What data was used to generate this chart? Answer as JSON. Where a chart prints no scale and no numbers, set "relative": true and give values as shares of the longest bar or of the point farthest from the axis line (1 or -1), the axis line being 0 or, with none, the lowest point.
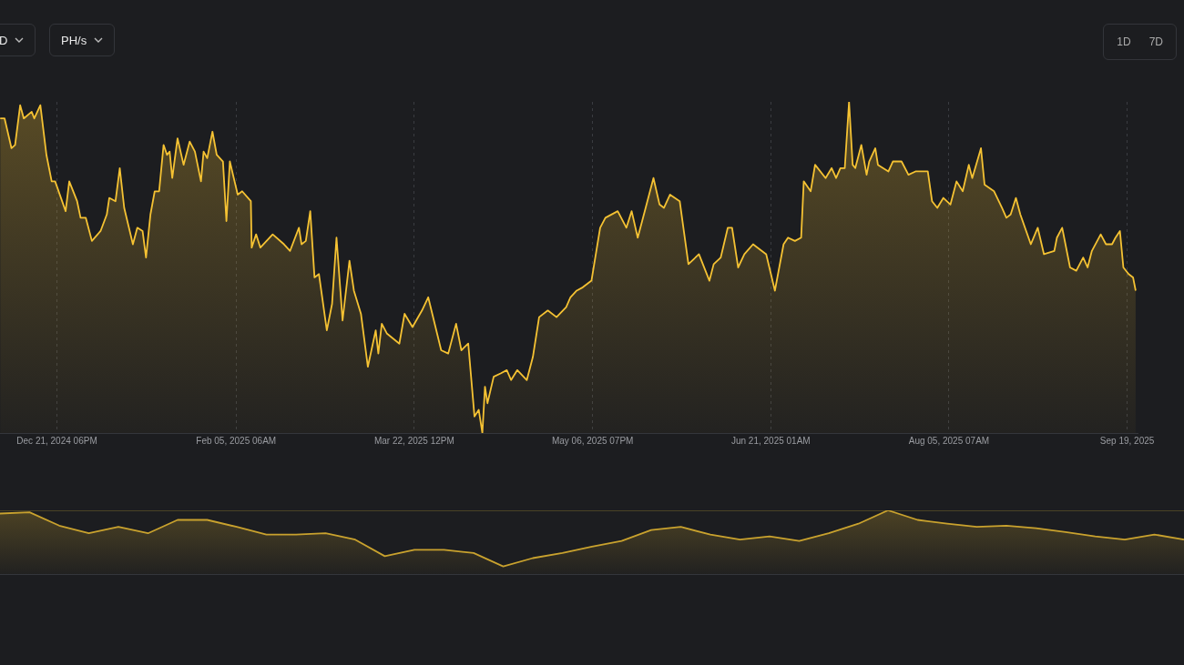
{
  "chart_data": [
    {
      "type": "area",
      "relative": true,
      "grid": "x",
      "legend": false,
      "tick_labels": "x",
      "color": "#f5c233",
      "annotations": [
        "D",
        "PH/s",
        "1D",
        "7D"
      ],
      "xlim": [
        "2024-12-07T07:00",
        "2025-09-22T10:00"
      ],
      "xticks": [
        {
          "value": "2024-12-21T18:00",
          "label": "Dec 21, 2024 06PM"
        },
        {
          "value": "2025-02-05T06:00",
          "label": "Feb 05, 2025 06AM"
        },
        {
          "value": "2025-03-22T12:00",
          "label": "Mar 22, 2025 12PM"
        },
        {
          "value": "2025-05-06T19:00",
          "label": "May 06, 2025 07PM"
        },
        {
          "value": "2025-06-21T01:00",
          "label": "Jun 21, 2025 01AM"
        },
        {
          "value": "2025-08-05T07:00",
          "label": "Aug 05, 2025 07AM"
        },
        {
          "value": "2025-09-19T13:00",
          "label": "Sep 19, 2025"
        }
      ],
      "x": [
        "2024-12-07T08:00",
        "2024-12-08T11:00",
        "2024-12-10T05:00",
        "2024-12-11T03:00",
        "2024-12-12T10:00",
        "2024-12-13T08:00",
        "2024-12-15T08:00",
        "2024-12-16T00:00",
        "2024-12-17T13:00",
        "2024-12-19T02:00",
        "2024-12-20T10:00",
        "2024-12-21T07:00",
        "2024-12-23T23:00",
        "2024-12-24T21:00",
        "2024-12-26T21:00",
        "2024-12-27T18:00",
        "2024-12-29T02:00",
        "2024-12-30T15:00",
        "2025-01-01T20:00",
        "2025-01-03T10:00",
        "2025-01-04T01:00",
        "2025-01-05T15:00",
        "2025-01-06T17:00",
        "2025-01-07T20:00",
        "2025-01-10T01:00",
        "2025-01-11T04:00",
        "2025-01-12T12:00",
        "2025-01-13T09:00",
        "2025-01-14T12:00",
        "2025-01-15T14:00",
        "2025-01-16T17:00",
        "2025-01-17T20:00",
        "2025-01-18T17:00",
        "2025-01-19T09:00",
        "2025-01-20T01:00",
        "2025-01-21T09:00",
        "2025-01-22T22:00",
        "2025-01-24T11:00",
        "2025-01-25T19:00",
        "2025-01-27T08:00",
        "2025-01-28T00:00",
        "2025-01-28T22:00",
        "2025-01-30T06:00",
        "2025-01-31T08:00",
        "2025-02-01T22:00",
        "2025-02-02T19:00",
        "2025-02-03T16:00",
        "2025-02-05T16:00",
        "2025-02-06T19:00",
        "2025-02-09T00:00",
        "2025-02-09T05:00",
        "2025-02-10T08:00",
        "2025-02-11T10:00",
        "2025-02-14T13:00",
        "2025-02-17T10:00",
        "2025-02-18T23:00",
        "2025-02-21T05:00",
        "2025-02-21T21:00",
        "2025-02-22T23:00",
        "2025-02-24T02:00",
        "2025-02-25T04:00",
        "2025-02-26T07:00",
        "2025-02-28T07:00",
        "2025-03-01T15:00",
        "2025-03-02T18:00",
        "2025-03-04T07:00",
        "2025-03-06T01:00",
        "2025-03-07T04:00",
        "2025-03-08T23:00",
        "2025-03-10T17:00",
        "2025-03-12T17:00",
        "2025-03-13T09:00",
        "2025-03-14T06:00",
        "2025-03-15T14:00",
        "2025-03-18T17:00",
        "2025-03-20T01:00",
        "2025-03-22T01:00",
        "2025-03-24T11:00",
        "2025-03-26T01:00",
        "2025-03-29T08:00",
        "2025-03-31T03:00",
        "2025-04-02T03:00",
        "2025-04-03T11:00",
        "2025-04-05T05:00",
        "2025-04-06T19:00",
        "2025-04-07T21:00",
        "2025-04-08T19:00",
        "2025-04-09T11:00",
        "2025-04-10T02:00",
        "2025-04-11T16:00",
        "2025-04-13T10:00",
        "2025-04-15T00:00",
        "2025-04-16T02:00",
        "2025-04-17T16:00",
        "2025-04-20T02:00",
        "2025-04-21T15:00",
        "2025-04-23T05:00",
        "2025-04-25T10:00",
        "2025-04-27T15:00",
        "2025-04-30T02:00",
        "2025-05-01T04:00",
        "2025-05-02T18:00",
        "2025-05-04T07:00",
        "2025-05-06T12:00",
        "2025-05-08T17:00",
        "2025-05-10T01:00",
        "2025-05-13T04:00",
        "2025-05-15T09:00",
        "2025-05-16T17:00",
        "2025-05-18T06:00",
        "2025-05-19T09:00",
        "2025-05-22T06:00",
        "2025-05-23T19:00",
        "2025-05-24T22:00",
        "2025-05-26T11:00",
        "2025-05-28T22:00",
        "2025-05-31T03:00",
        "2025-06-02T19:00",
        "2025-06-05T11:00",
        "2025-06-06T13:00",
        "2025-06-08T08:00",
        "2025-06-10T03:00",
        "2025-06-11T05:00",
        "2025-06-12T18:00",
        "2025-06-14T08:00",
        "2025-06-16T13:00",
        "2025-06-17T16:00",
        "2025-06-19T21:00",
        "2025-06-22T02:00",
        "2025-06-24T07:00",
        "2025-06-25T10:00",
        "2025-06-27T04:00",
        "2025-06-28T18:00",
        "2025-06-29T10:00",
        "2025-07-01T04:00",
        "2025-07-02T07:00",
        "2025-07-04T23:00",
        "2025-07-06T12:00",
        "2025-07-07T15:00",
        "2025-07-08T17:00",
        "2025-07-09T20:00",
        "2025-07-10T22:00",
        "2025-07-11T20:00",
        "2025-07-12T12:00",
        "2025-07-14T01:00",
        "2025-07-15T09:00",
        "2025-07-16T01:00",
        "2025-07-17T14:00",
        "2025-07-18T06:00",
        "2025-07-20T22:00",
        "2025-07-22T01:00",
        "2025-07-24T06:00",
        "2025-07-26T00:00",
        "2025-07-27T19:00",
        "2025-07-30T22:00",
        "2025-08-01T00:00",
        "2025-08-02T08:00",
        "2025-08-03T21:00",
        "2025-08-05T16:00",
        "2025-08-07T05:00",
        "2025-08-08T19:00",
        "2025-08-10T08:00",
        "2025-08-11T05:00",
        "2025-08-13T10:00",
        "2025-08-14T08:00",
        "2025-08-16T18:00",
        "2025-08-18T18:00",
        "2025-08-19T21:00",
        "2025-08-20T23:00",
        "2025-08-22T07:00",
        "2025-08-23T10:00",
        "2025-08-26T02:00",
        "2025-08-27T20:00",
        "2025-08-29T10:00",
        "2025-09-01T01:00",
        "2025-09-01T17:00",
        "2025-09-03T01:00",
        "2025-09-05T01:00",
        "2025-09-06T15:00",
        "2025-09-08T09:00",
        "2025-09-09T12:00",
        "2025-09-10T14:00",
        "2025-09-12T20:00",
        "2025-09-14T04:00",
        "2025-09-15T17:00",
        "2025-09-16T14:00",
        "2025-09-17T17:00",
        "2025-09-18T14:00",
        "2025-09-19T22:00",
        "2025-09-21T01:00",
        "2025-09-21T17:00"
      ],
      "values": [
        0.95,
        0.95,
        0.86,
        0.87,
        0.99,
        0.95,
        0.97,
        0.95,
        0.99,
        0.84,
        0.76,
        0.76,
        0.67,
        0.76,
        0.7,
        0.65,
        0.65,
        0.58,
        0.61,
        0.66,
        0.71,
        0.7,
        0.8,
        0.68,
        0.57,
        0.62,
        0.61,
        0.53,
        0.66,
        0.73,
        0.73,
        0.87,
        0.84,
        0.85,
        0.77,
        0.89,
        0.81,
        0.88,
        0.85,
        0.76,
        0.85,
        0.83,
        0.91,
        0.84,
        0.82,
        0.64,
        0.82,
        0.72,
        0.73,
        0.7,
        0.56,
        0.6,
        0.56,
        0.6,
        0.57,
        0.55,
        0.62,
        0.57,
        0.58,
        0.67,
        0.47,
        0.48,
        0.31,
        0.39,
        0.59,
        0.34,
        0.52,
        0.43,
        0.36,
        0.2,
        0.31,
        0.24,
        0.33,
        0.3,
        0.27,
        0.36,
        0.32,
        0.37,
        0.41,
        0.25,
        0.24,
        0.33,
        0.25,
        0.27,
        0.05,
        0.07,
        0,
        0.14,
        0.09,
        0.17,
        0.18,
        0.19,
        0.16,
        0.19,
        0.16,
        0.23,
        0.35,
        0.37,
        0.35,
        0.38,
        0.41,
        0.43,
        0.44,
        0.46,
        0.62,
        0.65,
        0.67,
        0.62,
        0.67,
        0.59,
        0.64,
        0.77,
        0.69,
        0.68,
        0.72,
        0.7,
        0.51,
        0.54,
        0.46,
        0.51,
        0.53,
        0.62,
        0.62,
        0.5,
        0.54,
        0.57,
        0.56,
        0.54,
        0.43,
        0.57,
        0.59,
        0.58,
        0.59,
        0.76,
        0.73,
        0.81,
        0.77,
        0.8,
        0.77,
        0.8,
        0.8,
        1,
        0.81,
        0.8,
        0.87,
        0.78,
        0.82,
        0.86,
        0.81,
        0.79,
        0.82,
        0.82,
        0.78,
        0.79,
        0.79,
        0.7,
        0.68,
        0.71,
        0.69,
        0.76,
        0.73,
        0.81,
        0.77,
        0.86,
        0.75,
        0.73,
        0.68,
        0.65,
        0.66,
        0.71,
        0.66,
        0.57,
        0.62,
        0.54,
        0.55,
        0.59,
        0.62,
        0.5,
        0.49,
        0.53,
        0.5,
        0.55,
        0.6,
        0.57,
        0.57,
        0.59,
        0.61,
        0.5,
        0.48,
        0.47,
        0.43
      ]
    },
    {
      "type": "area",
      "relative": true,
      "grid": false,
      "legend": false,
      "tick_labels": false,
      "color": "#c9a22e",
      "categories": [
        null,
        null,
        null,
        null,
        null,
        null,
        null,
        null,
        null,
        null,
        null,
        null,
        null,
        null,
        null,
        null,
        null,
        null,
        null,
        null,
        null,
        null,
        null,
        null,
        null,
        null,
        null,
        null,
        null,
        null,
        null,
        null,
        null,
        null,
        null,
        null,
        null,
        null,
        null,
        null,
        null
      ],
      "values": [
        0.95,
        0.97,
        0.76,
        0.64,
        0.74,
        0.64,
        0.85,
        0.85,
        0.74,
        0.62,
        0.62,
        0.64,
        0.54,
        0.28,
        0.38,
        0.38,
        0.33,
        0.12,
        0.25,
        0.33,
        0.43,
        0.52,
        0.69,
        0.74,
        0.62,
        0.54,
        0.59,
        0.52,
        0.64,
        0.79,
        1,
        0.85,
        0.79,
        0.74,
        0.76,
        0.72,
        0.66,
        0.59,
        0.54,
        0.62,
        0.54
      ]
    }
  ]
}
